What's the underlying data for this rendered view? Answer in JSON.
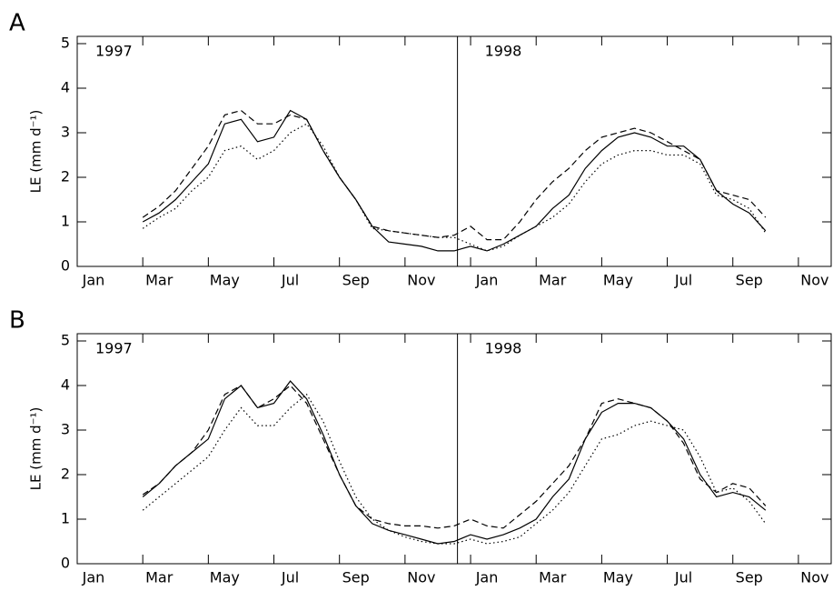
{
  "chart_data": [
    {
      "type": "line",
      "panel_label": "A",
      "y_label": "LE (mm d⁻¹)",
      "annotations": [
        "1997",
        "1998"
      ],
      "divider_x": 11.6,
      "xlim": [
        0,
        23
      ],
      "ylim": [
        0,
        5
      ],
      "yticks": [
        0,
        1,
        2,
        3,
        4,
        5
      ],
      "xticks": [
        {
          "value": 0,
          "label": "Jan"
        },
        {
          "value": 2,
          "label": "Mar"
        },
        {
          "value": 4,
          "label": "May"
        },
        {
          "value": 6,
          "label": "Jul"
        },
        {
          "value": 8,
          "label": "Sep"
        },
        {
          "value": 10,
          "label": "Nov"
        },
        {
          "value": 12,
          "label": "Jan"
        },
        {
          "value": 14,
          "label": "Mar"
        },
        {
          "value": 16,
          "label": "May"
        },
        {
          "value": 18,
          "label": "Jul"
        },
        {
          "value": 20,
          "label": "Sep"
        },
        {
          "value": 22,
          "label": "Nov"
        }
      ],
      "x": [
        2,
        2.5,
        3,
        3.5,
        4,
        4.5,
        5,
        5.5,
        6,
        6.5,
        7,
        7.5,
        8,
        8.5,
        9,
        9.5,
        10,
        10.5,
        11,
        11.5,
        12,
        12.5,
        13,
        13.5,
        14,
        14.5,
        15,
        15.5,
        16,
        16.5,
        17,
        17.5,
        18,
        18.5,
        19,
        19.5,
        20,
        20.5,
        21
      ],
      "series": [
        {
          "color": "#000000",
          "dash": "solid",
          "values": [
            1.0,
            1.2,
            1.5,
            1.9,
            2.3,
            3.2,
            3.3,
            2.8,
            2.9,
            3.5,
            3.3,
            2.6,
            2.0,
            1.5,
            0.9,
            0.55,
            0.5,
            0.45,
            0.35,
            0.35,
            0.45,
            0.35,
            0.5,
            0.7,
            0.9,
            1.3,
            1.6,
            2.2,
            2.6,
            2.9,
            3.0,
            2.9,
            2.7,
            2.7,
            2.4,
            1.7,
            1.4,
            1.2,
            0.8
          ]
        },
        {
          "color": "#000000",
          "dash": "dashed",
          "values": [
            1.1,
            1.35,
            1.7,
            2.2,
            2.7,
            3.4,
            3.5,
            3.2,
            3.2,
            3.4,
            3.3,
            2.6,
            2.0,
            1.5,
            0.9,
            0.8,
            0.75,
            0.7,
            0.65,
            0.7,
            0.9,
            0.6,
            0.6,
            1.0,
            1.5,
            1.9,
            2.2,
            2.6,
            2.9,
            3.0,
            3.1,
            3.0,
            2.8,
            2.6,
            2.4,
            1.7,
            1.6,
            1.5,
            1.1
          ]
        },
        {
          "color": "#000000",
          "dash": "dotted",
          "values": [
            0.85,
            1.1,
            1.3,
            1.7,
            2.0,
            2.6,
            2.7,
            2.4,
            2.6,
            3.0,
            3.2,
            2.7,
            2.0,
            1.5,
            0.85,
            0.8,
            0.75,
            0.7,
            0.65,
            0.65,
            0.5,
            0.35,
            0.45,
            0.7,
            0.9,
            1.1,
            1.4,
            1.9,
            2.3,
            2.5,
            2.6,
            2.6,
            2.5,
            2.5,
            2.3,
            1.6,
            1.5,
            1.3,
            0.75
          ]
        }
      ]
    },
    {
      "type": "line",
      "panel_label": "B",
      "y_label": "LE (mm d⁻¹)",
      "annotations": [
        "1997",
        "1998"
      ],
      "divider_x": 11.6,
      "xlim": [
        0,
        23
      ],
      "ylim": [
        0,
        5
      ],
      "yticks": [
        0,
        1,
        2,
        3,
        4,
        5
      ],
      "xticks": [
        {
          "value": 0,
          "label": "Jan"
        },
        {
          "value": 2,
          "label": "Mar"
        },
        {
          "value": 4,
          "label": "May"
        },
        {
          "value": 6,
          "label": "Jul"
        },
        {
          "value": 8,
          "label": "Sep"
        },
        {
          "value": 10,
          "label": "Nov"
        },
        {
          "value": 12,
          "label": "Jan"
        },
        {
          "value": 14,
          "label": "Mar"
        },
        {
          "value": 16,
          "label": "May"
        },
        {
          "value": 18,
          "label": "Jul"
        },
        {
          "value": 20,
          "label": "Sep"
        },
        {
          "value": 22,
          "label": "Nov"
        }
      ],
      "x": [
        2,
        2.5,
        3,
        3.5,
        4,
        4.5,
        5,
        5.5,
        6,
        6.5,
        7,
        7.5,
        8,
        8.5,
        9,
        9.5,
        10,
        10.5,
        11,
        11.5,
        12,
        12.5,
        13,
        13.5,
        14,
        14.5,
        15,
        15.5,
        16,
        16.5,
        17,
        17.5,
        18,
        18.5,
        19,
        19.5,
        20,
        20.5,
        21
      ],
      "series": [
        {
          "color": "#000000",
          "dash": "solid",
          "values": [
            1.5,
            1.8,
            2.2,
            2.5,
            2.8,
            3.7,
            4.0,
            3.5,
            3.6,
            4.1,
            3.7,
            2.9,
            2.0,
            1.3,
            0.9,
            0.75,
            0.65,
            0.55,
            0.45,
            0.5,
            0.65,
            0.55,
            0.65,
            0.8,
            1.0,
            1.5,
            1.9,
            2.8,
            3.4,
            3.6,
            3.6,
            3.5,
            3.2,
            2.8,
            2.0,
            1.5,
            1.6,
            1.5,
            1.2
          ]
        },
        {
          "color": "#000000",
          "dash": "dashed",
          "values": [
            1.55,
            1.8,
            2.2,
            2.5,
            3.0,
            3.8,
            4.0,
            3.5,
            3.7,
            4.0,
            3.6,
            2.8,
            2.0,
            1.3,
            1.0,
            0.9,
            0.85,
            0.85,
            0.8,
            0.85,
            1.0,
            0.85,
            0.8,
            1.1,
            1.4,
            1.8,
            2.2,
            2.8,
            3.6,
            3.7,
            3.6,
            3.5,
            3.2,
            2.7,
            1.9,
            1.6,
            1.8,
            1.7,
            1.3
          ]
        },
        {
          "color": "#000000",
          "dash": "dotted",
          "values": [
            1.2,
            1.5,
            1.8,
            2.1,
            2.4,
            3.0,
            3.5,
            3.1,
            3.1,
            3.5,
            3.8,
            3.2,
            2.3,
            1.5,
            1.0,
            0.75,
            0.6,
            0.5,
            0.45,
            0.45,
            0.55,
            0.45,
            0.5,
            0.6,
            0.9,
            1.2,
            1.6,
            2.2,
            2.8,
            2.9,
            3.1,
            3.2,
            3.1,
            3.0,
            2.4,
            1.6,
            1.7,
            1.4,
            0.9
          ]
        }
      ]
    }
  ]
}
